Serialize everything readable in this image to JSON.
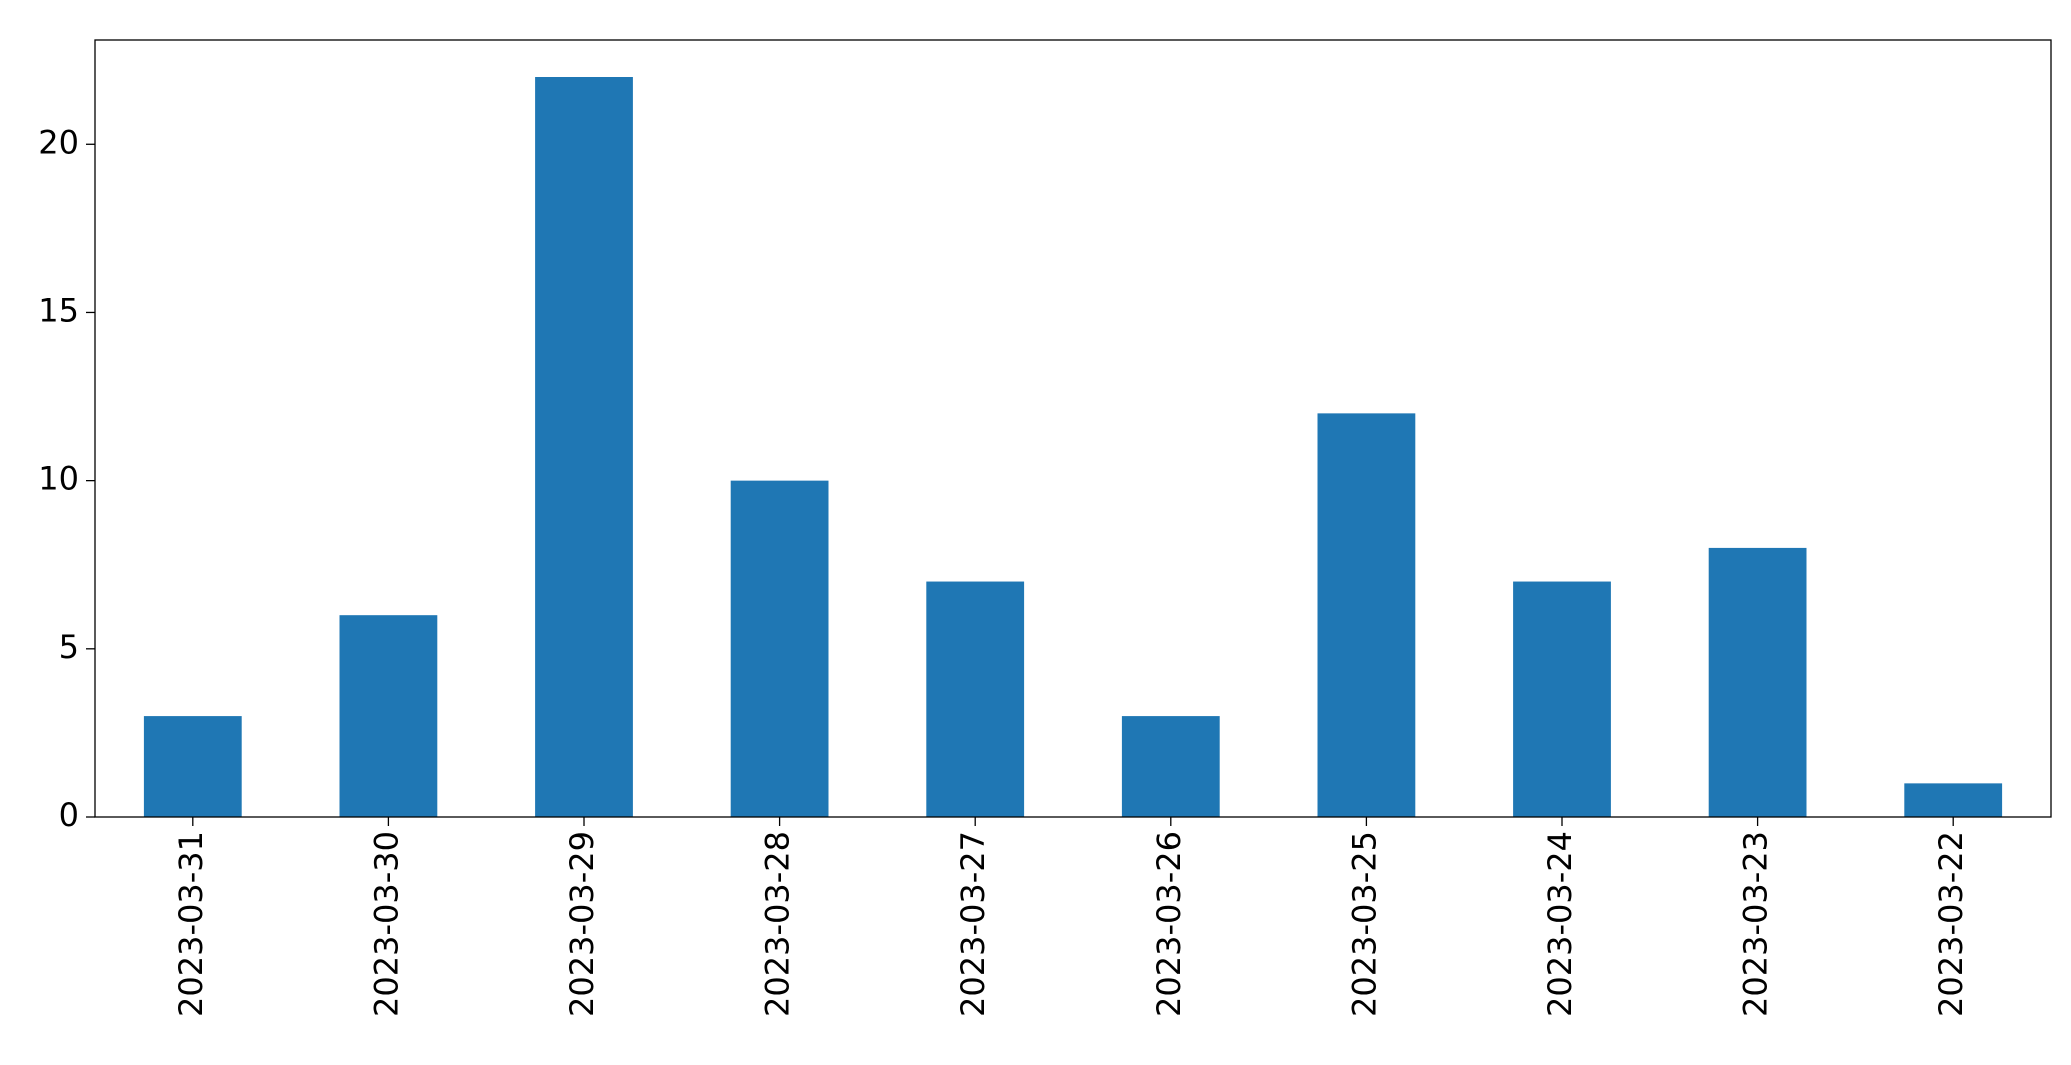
{
  "chart_data": {
    "type": "bar",
    "categories": [
      "2023-03-31",
      "2023-03-30",
      "2023-03-29",
      "2023-03-28",
      "2023-03-27",
      "2023-03-26",
      "2023-03-25",
      "2023-03-24",
      "2023-03-23",
      "2023-03-22"
    ],
    "values": [
      3,
      6,
      22,
      10,
      7,
      3,
      12,
      7,
      8,
      1
    ],
    "color": "#1f77b4",
    "ylim": [
      0,
      23.1
    ],
    "yticks": [
      0,
      5,
      10,
      15,
      20
    ],
    "grid": false
  }
}
